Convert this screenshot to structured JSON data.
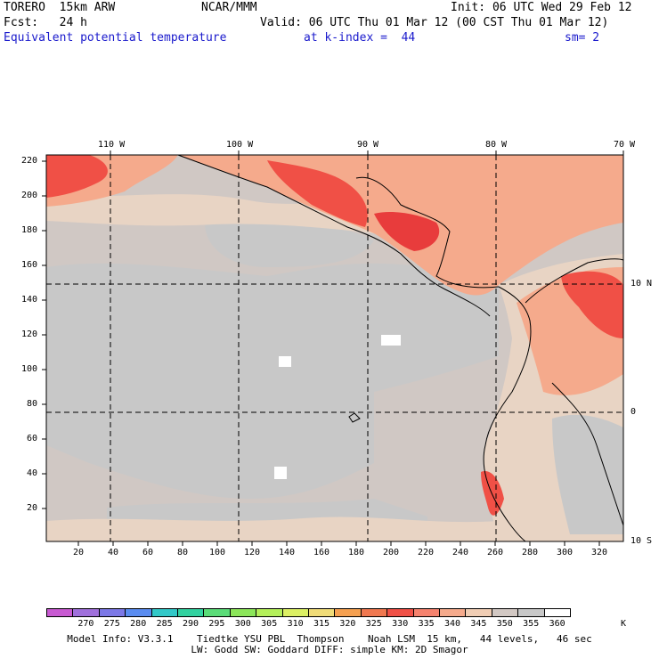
{
  "header": {
    "model": "TORERO  15km ARW",
    "org": "NCAR/MMM",
    "init": "Init: 06 UTC Wed 29 Feb 12",
    "fcst": "Fcst:   24 h",
    "valid": "Valid: 06 UTC Thu 01 Mar 12 (00 CST Thu 01 Mar 12)",
    "field": "Equivalent potential temperature",
    "level": "at k-index =  44",
    "smooth": "sm= 2"
  },
  "top_lon_labels": [
    "110 W",
    "100 W",
    "90 W",
    "80 W",
    "70 W"
  ],
  "right_lat_labels": [
    "10 N",
    "0",
    "10 S"
  ],
  "y_ticks": [
    "220",
    "200",
    "180",
    "160",
    "140",
    "120",
    "100",
    "80",
    "60",
    "40",
    "20"
  ],
  "x_ticks": [
    "20",
    "40",
    "60",
    "80",
    "100",
    "120",
    "140",
    "160",
    "180",
    "200",
    "220",
    "240",
    "260",
    "280",
    "300",
    "320"
  ],
  "colorbar": {
    "labels": [
      "270",
      "275",
      "280",
      "285",
      "290",
      "295",
      "300",
      "305",
      "310",
      "315",
      "320",
      "325",
      "330",
      "335",
      "340",
      "345",
      "350",
      "355",
      "360"
    ],
    "unit": "K",
    "colors": [
      "#c85ad2",
      "#a070dc",
      "#7c78e6",
      "#5a8cf0",
      "#32c8c8",
      "#32d2a0",
      "#5adc78",
      "#8ce65a",
      "#b4f05a",
      "#dcf064",
      "#f0dc78",
      "#f5a050",
      "#f07850",
      "#f05046",
      "#f5826e",
      "#f5aa8c",
      "#f0cdb4",
      "#d2c8c3",
      "#c8c8c8",
      "#ffffff"
    ]
  },
  "footer": {
    "line1": "Model Info: V3.3.1    Tiedtke YSU PBL  Thompson    Noah LSM  15 km,   44 levels,   46 sec",
    "line2": "LW: Godd SW: Goddard DIFF: simple KM: 2D Smagor"
  },
  "colors": {
    "title_blue": "#1a1acc",
    "ocean_base": "#d0c8c4",
    "gray_band": "#c8c8c8",
    "tan_band": "#e8d4c4",
    "salmon": "#f5aa8c",
    "red": "#f05046",
    "dark_red": "#e83c3c"
  }
}
